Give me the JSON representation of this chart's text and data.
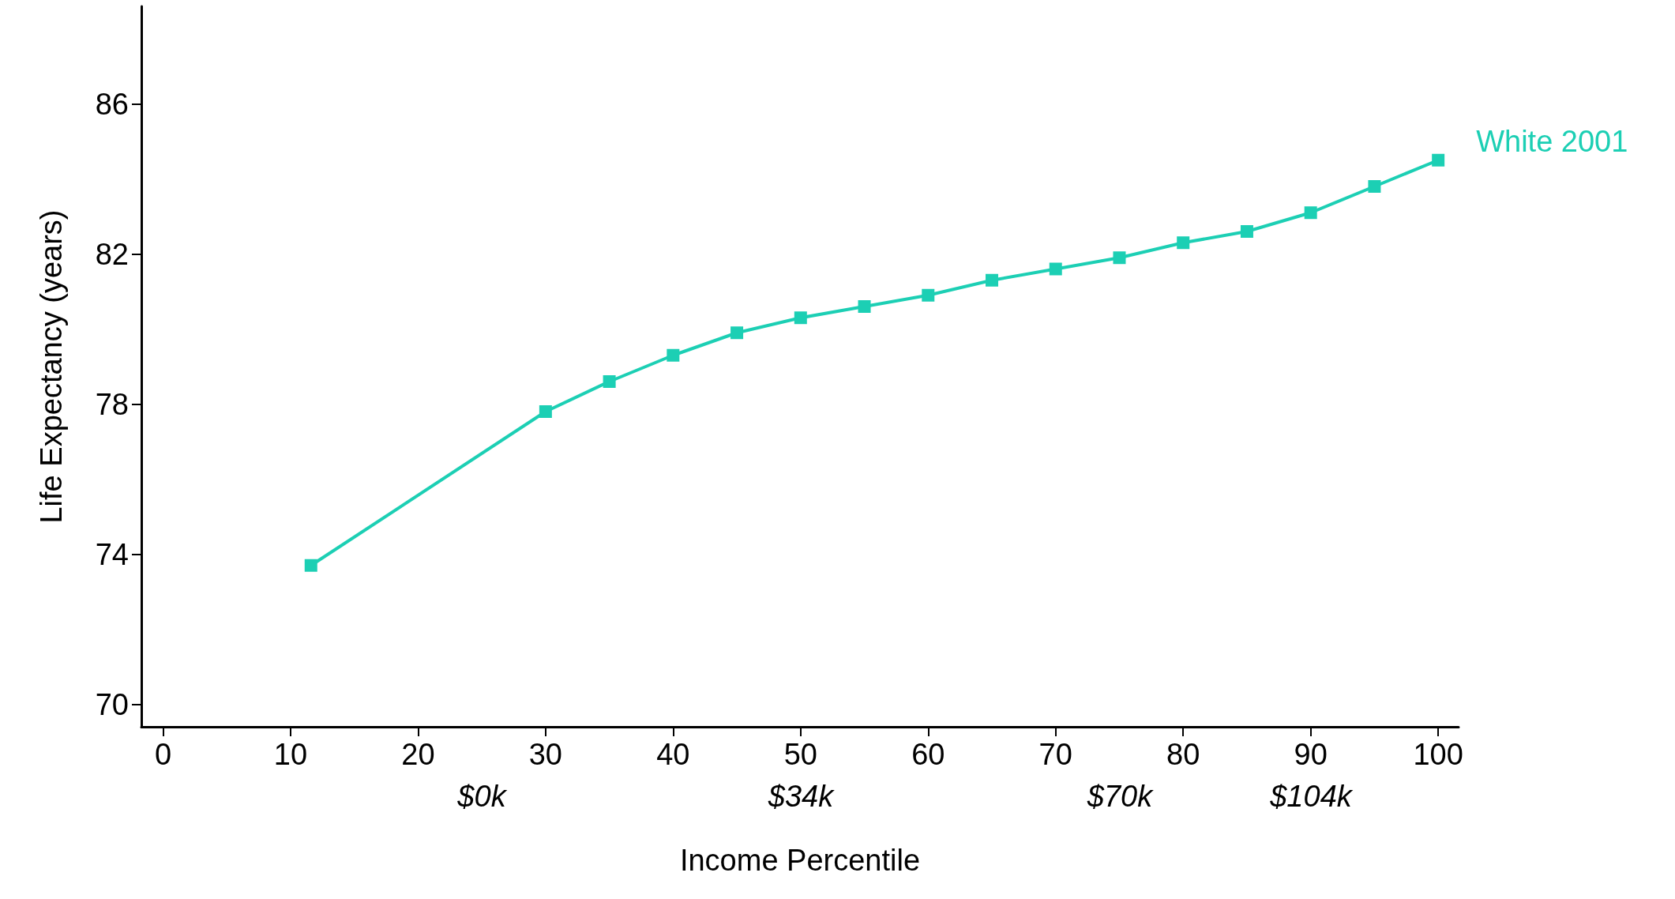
{
  "chart_data": {
    "type": "line",
    "xlabel": "Income Percentile",
    "ylabel": "Life Expectancy (years)",
    "series": [
      {
        "name": "White 2001",
        "color": "#1ccfb4",
        "x": [
          11.6,
          30,
          35,
          40,
          45,
          50,
          55,
          60,
          65,
          70,
          75,
          80,
          85,
          90,
          95,
          100
        ],
        "values": [
          73.7,
          77.8,
          78.6,
          79.3,
          79.9,
          80.3,
          80.6,
          80.9,
          81.3,
          81.6,
          81.9,
          82.3,
          82.6,
          83.1,
          83.8,
          84.5
        ]
      }
    ],
    "xlim": [
      -1.7,
      101.6
    ],
    "xticks": [
      0,
      10,
      20,
      30,
      40,
      50,
      60,
      70,
      80,
      90,
      100
    ],
    "annotations": [
      "$0k",
      "$34k",
      "$70k",
      "$104k"
    ],
    "ylim": [
      69.4,
      88.6
    ],
    "yticks": [
      70,
      74,
      78,
      82,
      86
    ],
    "marker": "square",
    "line_style": "solid",
    "grid": false,
    "legend": false
  }
}
